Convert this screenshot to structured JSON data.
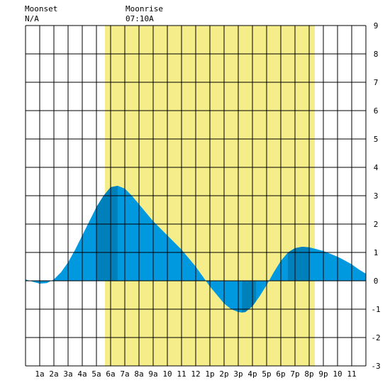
{
  "colors": {
    "background": "#ffffff",
    "grid": "#000000",
    "daylight": "#f5ec8a",
    "tide_light": "#0099e0",
    "tide_dark": "#0080bb"
  },
  "moon": {
    "moonset_label": "Moonset",
    "moonset_value": "N/A",
    "moonrise_label": "Moonrise",
    "moonrise_value": "07:10A"
  },
  "chart_data": {
    "type": "area",
    "title": "",
    "xlabel": "",
    "ylabel": "",
    "xlim": [
      0,
      24
    ],
    "ylim": [
      -3,
      9
    ],
    "x_tick_labels": [
      "1a",
      "2a",
      "3a",
      "4a",
      "5a",
      "6a",
      "7a",
      "8a",
      "9a",
      "10",
      "11",
      "12",
      "1p",
      "2p",
      "3p",
      "4p",
      "5p",
      "6p",
      "7p",
      "8p",
      "9p",
      "10",
      "11"
    ],
    "y_tick_labels": [
      "-3",
      "-2",
      "-1",
      "0",
      "1",
      "2",
      "3",
      "4",
      "5",
      "6",
      "7",
      "8",
      "9"
    ],
    "daylight_hours": [
      5.6,
      20.4
    ],
    "dark_hour_bands": [
      [
        5,
        6.5
      ],
      [
        15.25,
        16.25
      ],
      [
        18.5,
        20
      ]
    ],
    "series": [
      {
        "x": [
          0,
          0.5,
          1,
          1.5,
          2,
          2.5,
          3,
          3.5,
          4,
          4.5,
          5,
          5.5,
          6,
          6.5,
          7,
          7.5,
          8,
          8.5,
          9,
          9.5,
          10,
          10.5,
          11,
          11.5,
          12,
          12.5,
          13,
          13.5,
          14,
          14.5,
          15,
          15.25,
          15.5,
          16,
          16.5,
          17,
          17.5,
          18,
          18.5,
          19,
          19.5,
          20,
          20.5,
          21,
          21.5,
          22,
          22.5,
          23,
          23.5,
          24
        ],
        "values": [
          0.05,
          -0.03,
          -0.1,
          -0.08,
          0.05,
          0.3,
          0.65,
          1.1,
          1.6,
          2.1,
          2.6,
          3.0,
          3.3,
          3.35,
          3.25,
          3.0,
          2.7,
          2.4,
          2.1,
          1.85,
          1.6,
          1.35,
          1.1,
          0.8,
          0.5,
          0.15,
          -0.2,
          -0.5,
          -0.8,
          -1.0,
          -1.1,
          -1.12,
          -1.1,
          -0.9,
          -0.55,
          -0.15,
          0.3,
          0.7,
          1.0,
          1.15,
          1.2,
          1.18,
          1.12,
          1.05,
          0.95,
          0.85,
          0.72,
          0.58,
          0.4,
          0.25
        ]
      }
    ]
  }
}
